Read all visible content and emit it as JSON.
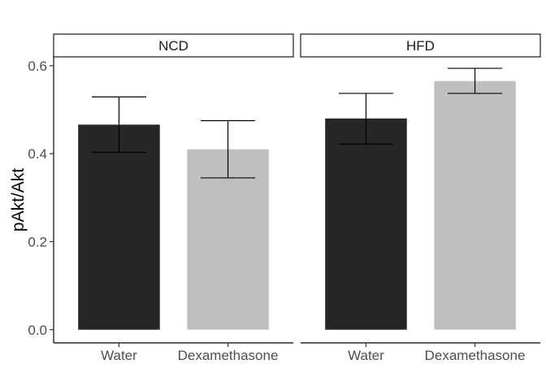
{
  "chart_data": {
    "type": "bar",
    "title": "",
    "xlabel": "",
    "ylabel": "pAkt/Akt",
    "ylim": [
      -0.03,
      0.62
    ],
    "yticks": [
      "0.0",
      "0.2",
      "0.4",
      "0.6"
    ],
    "categories": [
      "Water",
      "Dexamethasone"
    ],
    "colors": {
      "Water": "#262626",
      "Dexamethasone": "#bfbfbf"
    },
    "grid": false,
    "legend": "none",
    "facets": [
      {
        "label": "NCD",
        "bars": [
          {
            "category": "Water",
            "value": 0.466,
            "error_low": 0.403,
            "error_high": 0.529
          },
          {
            "category": "Dexamethasone",
            "value": 0.41,
            "error_low": 0.345,
            "error_high": 0.475
          }
        ]
      },
      {
        "label": "HFD",
        "bars": [
          {
            "category": "Water",
            "value": 0.48,
            "error_low": 0.422,
            "error_high": 0.537
          },
          {
            "category": "Dexamethasone",
            "value": 0.565,
            "error_low": 0.537,
            "error_high": 0.594
          }
        ]
      }
    ]
  }
}
